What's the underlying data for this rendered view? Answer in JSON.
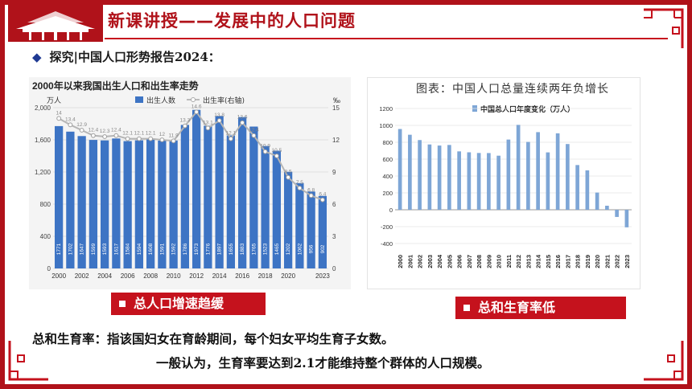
{
  "header": {
    "title": "新课讲授——发展中的人口问题"
  },
  "section": {
    "subheading": "探究|中国人口形势报告2024："
  },
  "colors": {
    "accent_red": "#c5121d",
    "bar_blue": "#3d74c4",
    "right_bar_blue": "#7ea6d6"
  },
  "chart_data": [
    {
      "type": "bar",
      "title": "2000年以来我国出生人口和出生率走势",
      "left_unit": "万人",
      "right_unit": "‰",
      "legend": [
        "出生人数",
        "出生率(右轴)"
      ],
      "categories": [
        "2000",
        "2001",
        "2002",
        "2003",
        "2004",
        "2005",
        "2006",
        "2007",
        "2008",
        "2009",
        "2010",
        "2011",
        "2012",
        "2013",
        "2014",
        "2015",
        "2016",
        "2017",
        "2018",
        "2019",
        "2020",
        "2021",
        "2022",
        "2023"
      ],
      "x_tick_labels": [
        "2000",
        "2002",
        "2004",
        "2006",
        "2008",
        "2010",
        "2012",
        "2014",
        "2016",
        "2018",
        "2020",
        "2023"
      ],
      "series": [
        {
          "name": "出生人数",
          "values": [
            1771,
            1702,
            1647,
            1599,
            1593,
            1617,
            1584,
            1594,
            1608,
            1591,
            1592,
            1786,
            1973,
            1776,
            1897,
            1655,
            1883,
            1765,
            1523,
            1465,
            1202,
            1062,
            956,
            902
          ]
        },
        {
          "name": "出生率(右轴)",
          "values": [
            14,
            13.4,
            12.9,
            12.4,
            12.3,
            12.4,
            12.1,
            12.1,
            12.1,
            12,
            11.9,
            13.3,
            14.6,
            13.1,
            13.8,
            12.1,
            13.6,
            12.4,
            10.9,
            10.5,
            8.5,
            7.5,
            6.8,
            6.4
          ]
        }
      ],
      "ylim": [
        0,
        2000
      ],
      "y_ticks": [
        "2,000",
        "1,600",
        "1,200",
        "800",
        "400",
        "0"
      ],
      "y2lim": [
        0,
        15
      ],
      "y2_ticks": [
        "15",
        "12",
        "9",
        "6",
        "3",
        "0"
      ],
      "grid": true,
      "legend_position": "top"
    },
    {
      "type": "bar",
      "title": "图表：中国人口总量连续两年负增长",
      "legend": [
        "中国总人口年度变化（万人）"
      ],
      "categories": [
        "2000",
        "2001",
        "2002",
        "2003",
        "2004",
        "2005",
        "2006",
        "2007",
        "2008",
        "2009",
        "2010",
        "2011",
        "2012",
        "2013",
        "2014",
        "2015",
        "2016",
        "2017",
        "2018",
        "2019",
        "2020",
        "2021",
        "2022",
        "2023"
      ],
      "values": [
        957,
        889,
        826,
        774,
        761,
        768,
        692,
        681,
        673,
        672,
        641,
        832,
        1006,
        804,
        920,
        680,
        906,
        779,
        530,
        467,
        204,
        48,
        -85,
        -208
      ],
      "ylim": [
        -400,
        1200
      ],
      "y_ticks": [
        "1200",
        "1000",
        "800",
        "600",
        "400",
        "200",
        "0",
        "-200",
        "-400"
      ],
      "grid": true,
      "legend_position": "top-left"
    }
  ],
  "labels": {
    "left": "总人口增速趋缓",
    "right": "总和生育率低"
  },
  "definition": {
    "line1": "总和生育率：指该国妇女在育龄期间，每个妇女平均生育子女数。",
    "line2": "一般认为，生育率要达到2.1才能维持整个群体的人口规模。"
  }
}
